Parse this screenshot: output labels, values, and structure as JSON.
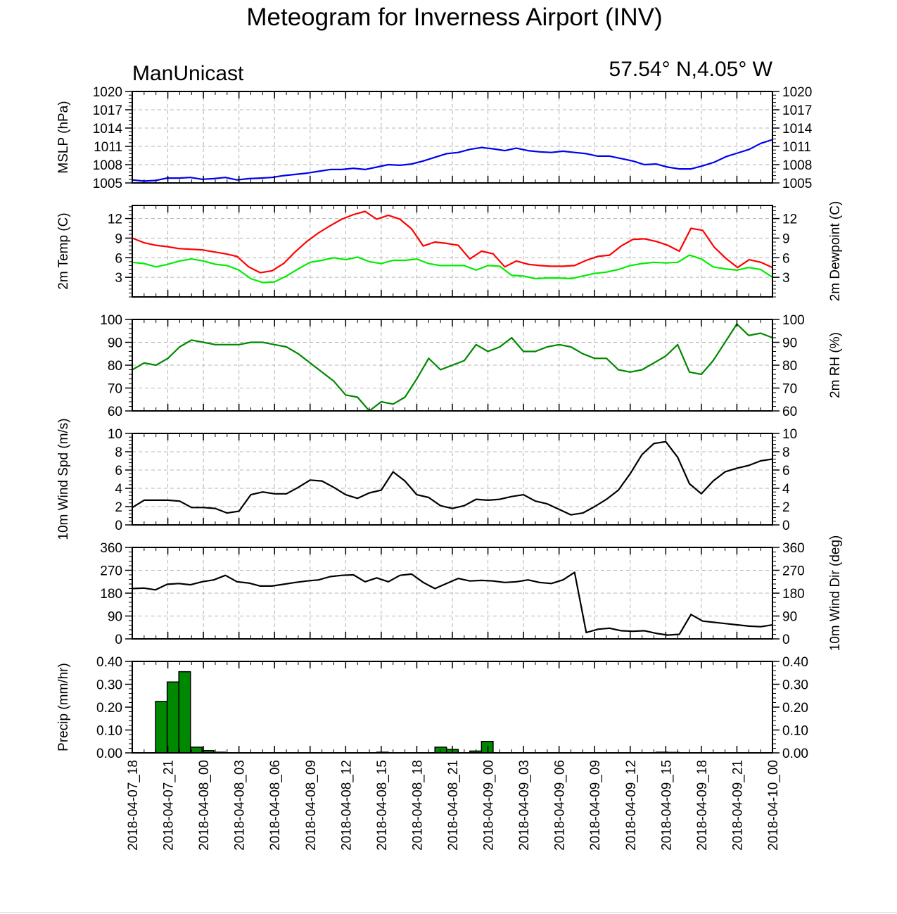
{
  "title": "Meteogram for Inverness Airport (INV)",
  "left_subtitle": "ManUnicast",
  "right_subtitle": "57.54° N,4.05° W",
  "x_ticks": [
    "2018-04-07_18",
    "2018-04-07_21",
    "2018-04-08_00",
    "2018-04-08_03",
    "2018-04-08_06",
    "2018-04-08_09",
    "2018-04-08_12",
    "2018-04-08_15",
    "2018-04-08_18",
    "2018-04-08_21",
    "2018-04-09_00",
    "2018-04-09_03",
    "2018-04-09_06",
    "2018-04-09_09",
    "2018-04-09_12",
    "2018-04-09_15",
    "2018-04-09_18",
    "2018-04-09_21",
    "2018-04-10_00"
  ],
  "chart_data": [
    {
      "type": "line",
      "ylabel_left": "MSLP (hPa)",
      "ylim": [
        1005,
        1020
      ],
      "y_ticks": [
        "1005",
        "1008",
        "1011",
        "1014",
        "1017",
        "1020"
      ],
      "grid": true,
      "series": [
        {
          "color": "#0000ee",
          "values": [
            1005.5,
            1005.3,
            1005.4,
            1005.8,
            1005.8,
            1005.9,
            1005.6,
            1005.7,
            1005.9,
            1005.5,
            1005.7,
            1005.8,
            1005.9,
            1006.2,
            1006.4,
            1006.6,
            1006.9,
            1007.2,
            1007.2,
            1007.4,
            1007.2,
            1007.6,
            1008.0,
            1007.9,
            1008.1,
            1008.6,
            1009.2,
            1009.8,
            1010.0,
            1010.5,
            1010.8,
            1010.6,
            1010.3,
            1010.7,
            1010.3,
            1010.1,
            1010.0,
            1010.2,
            1010.0,
            1009.8,
            1009.4,
            1009.4,
            1009.0,
            1008.6,
            1008.0,
            1008.1,
            1007.6,
            1007.3,
            1007.3,
            1007.8,
            1008.4,
            1009.3,
            1009.9,
            1010.5,
            1011.5,
            1012.1
          ]
        }
      ]
    },
    {
      "type": "line",
      "ylabel_left": "2m Temp (C)",
      "ylabel_right": "2m Dewpoint (C)",
      "ylim": [
        0,
        14
      ],
      "y_ticks": [
        "3",
        "6",
        "9",
        "12"
      ],
      "grid": true,
      "series": [
        {
          "color": "#ff0000",
          "values": [
            9.0,
            8.3,
            7.9,
            7.7,
            7.4,
            7.3,
            7.2,
            6.9,
            6.6,
            6.2,
            4.6,
            3.7,
            4.0,
            5.1,
            6.9,
            8.5,
            9.8,
            10.9,
            11.9,
            12.6,
            13.1,
            11.9,
            12.5,
            11.9,
            10.4,
            7.8,
            8.4,
            8.2,
            7.9,
            5.8,
            7.0,
            6.6,
            4.6,
            5.5,
            5.0,
            4.8,
            4.7,
            4.7,
            4.8,
            5.6,
            6.2,
            6.4,
            7.8,
            8.8,
            8.9,
            8.5,
            7.9,
            7.0,
            10.5,
            10.2,
            7.6,
            5.9,
            4.5,
            5.7,
            5.3,
            4.5
          ]
        },
        {
          "color": "#00ee00",
          "values": [
            5.3,
            5.1,
            4.6,
            5.0,
            5.5,
            5.8,
            5.5,
            5.0,
            4.8,
            4.1,
            2.8,
            2.2,
            2.3,
            3.2,
            4.3,
            5.3,
            5.6,
            6.0,
            5.7,
            6.1,
            5.4,
            5.1,
            5.6,
            5.6,
            5.8,
            5.1,
            4.8,
            4.8,
            4.8,
            4.1,
            4.8,
            4.7,
            3.3,
            3.2,
            2.8,
            2.9,
            2.9,
            2.8,
            3.2,
            3.6,
            3.8,
            4.2,
            4.8,
            5.1,
            5.3,
            5.2,
            5.3,
            6.4,
            5.8,
            4.6,
            4.3,
            4.1,
            4.5,
            4.2,
            3.0
          ]
        }
      ]
    },
    {
      "type": "line",
      "ylabel_right": "2m RH (%)",
      "ylim": [
        60,
        100
      ],
      "y_ticks": [
        "60",
        "70",
        "80",
        "90",
        "100"
      ],
      "grid": true,
      "series": [
        {
          "color": "#008800",
          "values": [
            78,
            81,
            80,
            83,
            88,
            91,
            90,
            89,
            89,
            89,
            90,
            90,
            89,
            88,
            85,
            81,
            77,
            73,
            67,
            66,
            60,
            64,
            63,
            66,
            74,
            83,
            78,
            80,
            82,
            89,
            86,
            88,
            92,
            86,
            86,
            88,
            89,
            88,
            85,
            83,
            83,
            78,
            77,
            78,
            81,
            84,
            89,
            77,
            76,
            82,
            90,
            98,
            93,
            94,
            92
          ]
        }
      ]
    },
    {
      "type": "line",
      "ylabel_left": "10m Wind Spd (m/s)",
      "ylim": [
        0,
        10
      ],
      "y_ticks": [
        "0",
        "2",
        "4",
        "6",
        "8",
        "10"
      ],
      "grid": true,
      "series": [
        {
          "color": "#000000",
          "values": [
            1.9,
            2.7,
            2.7,
            2.7,
            2.6,
            1.9,
            1.9,
            1.8,
            1.3,
            1.5,
            3.3,
            3.6,
            3.4,
            3.4,
            4.1,
            4.9,
            4.8,
            4.1,
            3.3,
            2.9,
            3.5,
            3.8,
            5.8,
            4.8,
            3.3,
            3.0,
            2.1,
            1.8,
            2.1,
            2.8,
            2.7,
            2.8,
            3.1,
            3.3,
            2.6,
            2.3,
            1.7,
            1.1,
            1.3,
            2.0,
            2.8,
            3.8,
            5.6,
            7.7,
            8.9,
            9.1,
            7.4,
            4.5,
            3.4,
            4.8,
            5.8,
            6.2,
            6.5,
            7.0,
            7.2
          ]
        }
      ]
    },
    {
      "type": "line",
      "ylabel_right": "10m Wind Dir (deg)",
      "ylim": [
        0,
        360
      ],
      "y_ticks": [
        "0",
        "90",
        "180",
        "270",
        "360"
      ],
      "grid": true,
      "series": [
        {
          "color": "#000000",
          "values": [
            198,
            200,
            193,
            215,
            218,
            213,
            225,
            232,
            250,
            225,
            220,
            208,
            208,
            215,
            222,
            228,
            232,
            245,
            250,
            252,
            225,
            240,
            225,
            250,
            255,
            222,
            198,
            218,
            238,
            228,
            230,
            228,
            222,
            225,
            232,
            222,
            218,
            232,
            262,
            25,
            38,
            42,
            32,
            30,
            32,
            22,
            15,
            18,
            96,
            70,
            65,
            60,
            55,
            50,
            48,
            55
          ]
        }
      ]
    },
    {
      "type": "bar",
      "ylabel_left": "Precip (mm/hr)",
      "ylim": [
        0,
        0.4
      ],
      "y_ticks": [
        "0.00",
        "0.10",
        "0.20",
        "0.30",
        "0.40"
      ],
      "grid": false,
      "bar_color": "#008800",
      "values": [
        0,
        0,
        0.225,
        0.31,
        0.355,
        0.025,
        0.01,
        0.003,
        0,
        0,
        0,
        0,
        0,
        0,
        0,
        0,
        0,
        0,
        0,
        0,
        0,
        0.003,
        0,
        0,
        0,
        0,
        0.025,
        0.015,
        0,
        0.008,
        0.05,
        0,
        0,
        0,
        0,
        0,
        0,
        0,
        0,
        0,
        0,
        0,
        0,
        0,
        0,
        0.003,
        0.002,
        0,
        0,
        0,
        0,
        0,
        0,
        0,
        0
      ]
    }
  ]
}
